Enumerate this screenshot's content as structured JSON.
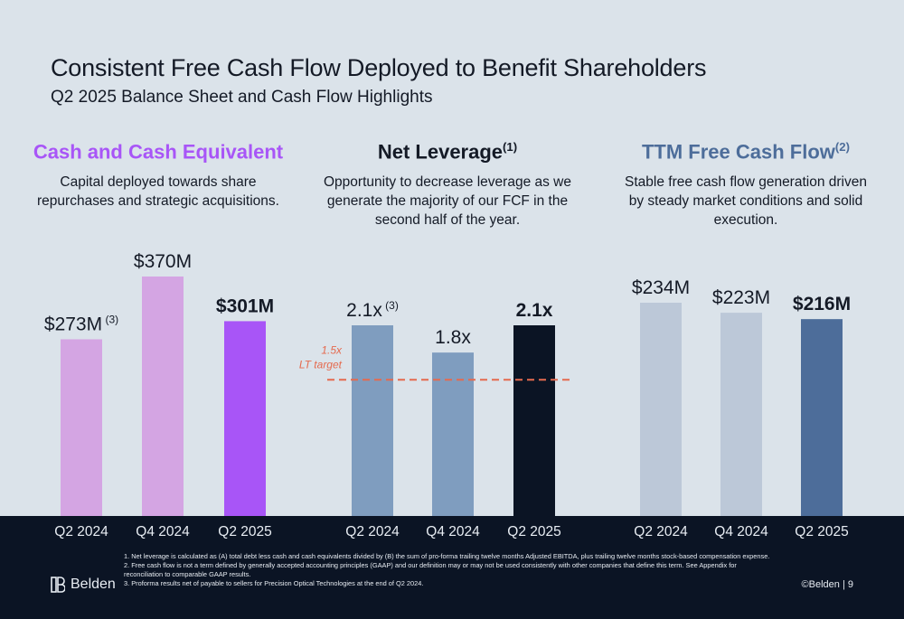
{
  "header": {
    "title": "Consistent Free Cash Flow Deployed to Benefit Shareholders",
    "subtitle": "Q2 2025 Balance Sheet and Cash Flow Highlights"
  },
  "panels": [
    {
      "heading": "Cash and Cash Equivalent",
      "heading_sup": "",
      "heading_color": "#a855f7",
      "description": "Capital deployed towards share repurchases and strategic acquisitions."
    },
    {
      "heading": "Net Leverage",
      "heading_sup": "(1)",
      "heading_color": "#141a26",
      "description": "Opportunity to decrease leverage as we generate the majority of our FCF in the second half of the year."
    },
    {
      "heading": "TTM Free Cash Flow",
      "heading_sup": "(2)",
      "heading_color": "#4d6d9a",
      "description": "Stable free cash flow generation driven by steady market conditions and solid execution."
    }
  ],
  "chart_data": [
    {
      "type": "bar",
      "categories": [
        "Q2 2024",
        "Q4 2024",
        "Q2 2025"
      ],
      "values": [
        273,
        370,
        301
      ],
      "labels": [
        "$273M",
        "$370M",
        "$301M"
      ],
      "label_sups": [
        "(3)",
        "",
        ""
      ],
      "label_bold": [
        false,
        false,
        true
      ],
      "colors": [
        "#d4a5e3",
        "#d4a5e3",
        "#a855f7"
      ],
      "unit": "$M"
    },
    {
      "type": "bar",
      "categories": [
        "Q2 2024",
        "Q4 2024",
        "Q2 2025"
      ],
      "values": [
        2.1,
        1.8,
        2.1
      ],
      "labels": [
        "2.1x",
        "1.8x",
        "2.1x"
      ],
      "label_sups": [
        "(3)",
        "",
        ""
      ],
      "label_bold": [
        false,
        false,
        true
      ],
      "colors": [
        "#7f9dbf",
        "#7f9dbf",
        "#0b1424"
      ],
      "unit": "x",
      "reference_line": {
        "value": 1.5,
        "label_line1": "1.5x",
        "label_line2": "LT target",
        "color": "#e56a4e"
      }
    },
    {
      "type": "bar",
      "categories": [
        "Q2 2024",
        "Q4 2024",
        "Q2 2025"
      ],
      "values": [
        234,
        223,
        216
      ],
      "labels": [
        "$234M",
        "$223M",
        "$216M"
      ],
      "label_sups": [
        "",
        "",
        ""
      ],
      "label_bold": [
        false,
        false,
        true
      ],
      "colors": [
        "#bcc8d8",
        "#bcc8d8",
        "#4d6d9a"
      ],
      "unit": "$M"
    }
  ],
  "footnotes": [
    "1. Net leverage is calculated as (A) total debt less cash and cash equivalents divided by (B) the sum of pro-forma trailing twelve months Adjusted EBITDA, plus trailing twelve months stock-based compensation expense.",
    "2. Free cash flow is not a term defined by generally accepted accounting principles (GAAP) and our definition may or may not be used consistently with other companies that define this term.  See Appendix for reconciliation to comparable GAAP results.",
    "3. Proforma results net of payable to sellers for Precision Optical Technologies at the end of Q2 2024."
  ],
  "footer": {
    "logo_text": "Belden",
    "page": "©Belden  |  9"
  }
}
